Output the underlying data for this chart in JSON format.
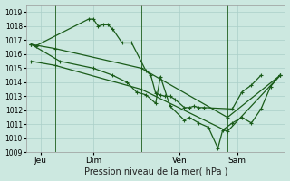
{
  "xlabel": "Pression niveau de la mer( hPa )",
  "background_color": "#cce8e0",
  "grid_color": "#aacfc8",
  "line_color": "#1a5c1a",
  "ylim": [
    1009,
    1019.5
  ],
  "yticks": [
    1009,
    1010,
    1011,
    1012,
    1013,
    1014,
    1015,
    1016,
    1017,
    1018,
    1019
  ],
  "xlim": [
    0,
    27
  ],
  "xtick_labels": [
    "Jeu",
    "Dim",
    "Ven",
    "Sam"
  ],
  "xtick_positions": [
    1.5,
    7,
    16,
    22
  ],
  "vlines_x": [
    3,
    12,
    21
  ],
  "line1_x": [
    0.5,
    1.0,
    6.5,
    7.0,
    7.5,
    8.0,
    8.5,
    9.0,
    10.0,
    11.0,
    12.5,
    13.0,
    13.5,
    14.0,
    14.5,
    15.0,
    15.5,
    16.5,
    17.0,
    17.5,
    18.0,
    18.5,
    21.5,
    22.5,
    23.5,
    24.5
  ],
  "line1_y": [
    1016.7,
    1016.6,
    1018.5,
    1018.5,
    1018.0,
    1018.1,
    1018.1,
    1017.8,
    1016.8,
    1016.8,
    1014.8,
    1014.5,
    1013.2,
    1013.1,
    1013.0,
    1013.0,
    1012.8,
    1012.2,
    1012.2,
    1012.3,
    1012.2,
    1012.2,
    1012.1,
    1013.3,
    1013.8,
    1014.5
  ],
  "line2_x": [
    0.5,
    3.0,
    12.0,
    21.0,
    26.5
  ],
  "line2_y": [
    1016.7,
    1016.4,
    1015.0,
    1011.5,
    1014.5
  ],
  "line3_x": [
    0.5,
    3.0,
    12.0,
    21.0,
    26.5
  ],
  "line3_y": [
    1015.5,
    1015.2,
    1013.5,
    1010.5,
    1014.5
  ],
  "line4_x": [
    0.5,
    3.5,
    7.0,
    9.0,
    10.5,
    11.5,
    12.5,
    13.5,
    14.0,
    15.0,
    16.5,
    17.0,
    18.0,
    19.0,
    20.0,
    20.5,
    21.5,
    22.5,
    23.5,
    24.5,
    25.5,
    26.5
  ],
  "line4_y": [
    1016.7,
    1015.5,
    1015.0,
    1014.5,
    1014.0,
    1013.3,
    1013.1,
    1012.5,
    1014.4,
    1012.3,
    1011.3,
    1011.5,
    1011.1,
    1010.8,
    1009.3,
    1010.6,
    1011.1,
    1011.5,
    1011.1,
    1012.1,
    1013.7,
    1014.5
  ]
}
